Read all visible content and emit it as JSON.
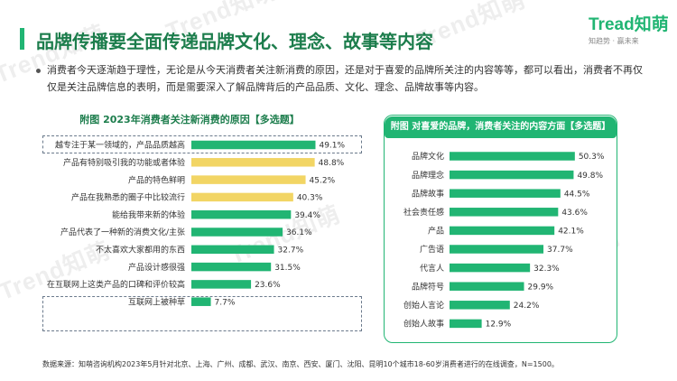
{
  "brand": {
    "logo_text": "Tread知萌",
    "tagline": "知趋势 · 赢未来",
    "watermark": "Trend知萌",
    "accent": "#21b573",
    "highlight": "#f2d564",
    "title_color": "#1c7d4c"
  },
  "page": {
    "title": "品牌传播要全面传递品牌文化、理念、故事等内容",
    "intro": "消费者今天逐渐趋于理性，无论是从今天消费者关注新消费的原因，还是对于喜爱的品牌所关注的内容等等，都可以看出，消费者不再仅仅是关注品牌信息的表明，而是需要深入了解品牌背后的产品品质、文化、理念、品牌故事等内容。",
    "source": "数据来源：知萌咨询机构2023年5月针对北京、上海、广州、成都、武汉、南京、西安、厦门、沈阳、昆明10个城市18-60岁消费者进行的在线调查，N=1500。"
  },
  "chart_data": [
    {
      "type": "bar",
      "orientation": "horizontal",
      "title": "附图 2023年消费者关注新消费的原因【多选题】",
      "categories": [
        "越专注于某一领域的，产品品质越高",
        "产品有特别吸引我的功能或者体验",
        "产品的特色鲜明",
        "产品在我熟悉的圈子中比较流行",
        "能给我带来新的体验",
        "产品代表了一种新的消费文化/主张",
        "不太喜欢大家都用的东西",
        "产品设计感很强",
        "在互联网上这类产品的口碑和评价较高",
        "互联网上被种草"
      ],
      "values": [
        49.1,
        48.8,
        45.2,
        40.3,
        39.4,
        36.1,
        32.7,
        31.5,
        23.6,
        7.7
      ],
      "value_labels": [
        "49.1%",
        "48.8%",
        "45.2%",
        "40.3%",
        "39.4%",
        "36.1%",
        "32.7%",
        "31.5%",
        "23.6%",
        "7.7%"
      ],
      "highlighted": [
        false,
        true,
        true,
        true,
        false,
        false,
        false,
        false,
        false,
        false
      ],
      "boxed": [
        0,
        8,
        9
      ],
      "xlim": [
        0,
        60
      ]
    },
    {
      "type": "bar",
      "orientation": "horizontal",
      "title": "附图 对喜爱的品牌，消费者关注的内容方面【多选题】",
      "categories": [
        "品牌文化",
        "品牌理念",
        "品牌故事",
        "社会责任感",
        "产品",
        "广告语",
        "代言人",
        "品牌符号",
        "创始人言论",
        "创始人故事"
      ],
      "values": [
        50.3,
        49.8,
        44.5,
        43.6,
        42.1,
        37.7,
        32.3,
        29.9,
        24.2,
        12.9
      ],
      "value_labels": [
        "50.3%",
        "49.8%",
        "44.5%",
        "43.6%",
        "42.1%",
        "37.7%",
        "32.3%",
        "29.9%",
        "24.2%",
        "12.9%"
      ],
      "xlim": [
        0,
        60
      ]
    }
  ]
}
